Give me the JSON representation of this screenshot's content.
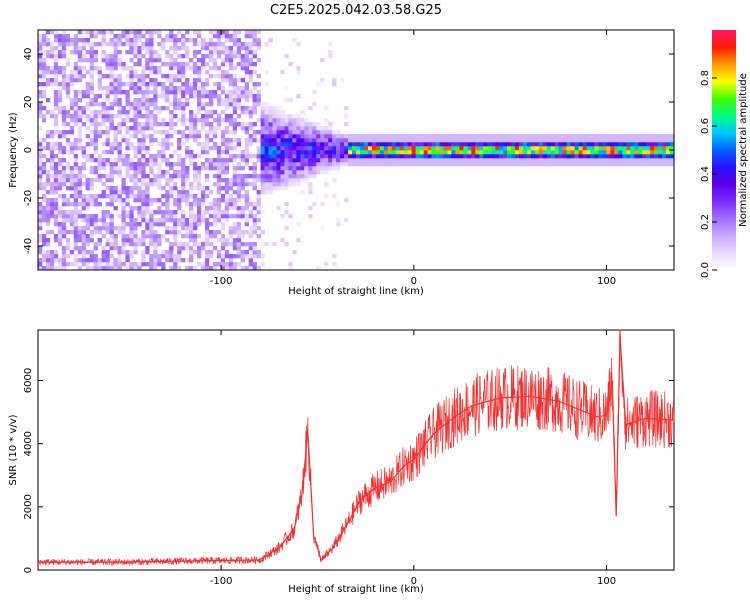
{
  "title": "C2E5.2025.042.03.58.G25",
  "chart_data": [
    {
      "type": "heatmap",
      "xlabel": "Height of straight line (km)",
      "ylabel": "Frequency (Hz)",
      "xlim": [
        -195,
        135
      ],
      "ylim": [
        -50,
        50
      ],
      "xticks": [
        -100,
        0,
        100
      ],
      "yticks": [
        -40,
        -20,
        0,
        20,
        40
      ],
      "colorbar": {
        "label": "Normalized spectral amplitude",
        "range": [
          0,
          1
        ],
        "ticks": [
          0.0,
          0.2,
          0.4,
          0.6,
          0.8
        ]
      },
      "colormap": [
        "#ffffff",
        "#e9d8ff",
        "#c9a8ff",
        "#a070ff",
        "#7a2cff",
        "#5a00e6",
        "#2a10ff",
        "#0060ff",
        "#00c8ff",
        "#00ff80",
        "#40ff00",
        "#ffff00",
        "#ff9900",
        "#ff1a00",
        "#ff1a66"
      ],
      "features": [
        {
          "region": "noise",
          "x_range": [
            -195,
            -80
          ],
          "level": 0.15
        },
        {
          "region": "transition",
          "x_range": [
            -80,
            -35
          ],
          "level": 0.4
        },
        {
          "region": "signal-band",
          "x_range": [
            -35,
            135
          ],
          "frequency_center": 0,
          "peak_level": 0.95
        }
      ]
    },
    {
      "type": "line",
      "xlabel": "Height of straight line (km)",
      "ylabel": "SNR (10 * v/v)",
      "xlim": [
        -195,
        135
      ],
      "ylim": [
        0,
        7600
      ],
      "xticks": [
        -100,
        0,
        100
      ],
      "yticks": [
        0,
        2000,
        4000,
        6000
      ],
      "color": "#ee3333",
      "series": [
        {
          "x": [
            -195,
            -150,
            -100,
            -80,
            -70,
            -62,
            -58,
            -55,
            -52,
            -48,
            -42,
            -35,
            -28,
            -20,
            -12,
            -5,
            0,
            10,
            20,
            30,
            45,
            60,
            75,
            85,
            95,
            100,
            103,
            105,
            107,
            110,
            120,
            135
          ],
          "values": [
            250,
            250,
            300,
            320,
            700,
            1300,
            2400,
            4400,
            1100,
            300,
            700,
            1400,
            2200,
            2600,
            2800,
            3300,
            3500,
            4300,
            4800,
            5200,
            5450,
            5500,
            5350,
            5100,
            4850,
            4900,
            6000,
            1700,
            7400,
            4600,
            4800,
            4750
          ]
        }
      ]
    }
  ]
}
